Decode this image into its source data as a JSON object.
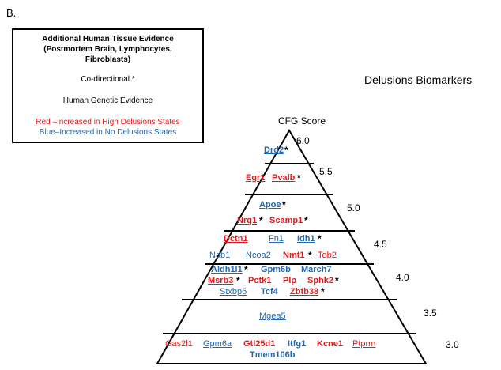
{
  "panel_label": "B.",
  "legend": {
    "title_lines": [
      "Additional Human Tissue Evidence",
      "(Postmortem Brain, Lymphocytes,",
      "Fibroblasts)"
    ],
    "codirectional": "Co-directional *",
    "genetic": "Human Genetic Evidence",
    "red_text": "Red –Increased in High Delusions States",
    "blue_text": "Blue–Increased in No Delusions States",
    "red_color": "#e31a1c",
    "blue_color": "#1f68b2"
  },
  "title": "Delusions Biomarkers",
  "cfg_label": "CFG Score",
  "scores": [
    "6.0",
    "5.5",
    "5.0",
    "4.5",
    "4.0",
    "3.5",
    "3.0"
  ],
  "genes": [
    {
      "name": "Drd2",
      "star": "*"
    },
    {
      "name": "Egr1"
    },
    {
      "name": "Pvalb",
      "star": "*"
    },
    {
      "name": "Apoe",
      "star": "*"
    },
    {
      "name": "Nrg1",
      "star": "*"
    },
    {
      "name": "Scamp1",
      "star": "*"
    },
    {
      "name": "Dctn1"
    },
    {
      "name": "Fn1"
    },
    {
      "name": "Idh1",
      "star": "*"
    },
    {
      "name": "Nab1"
    },
    {
      "name": "Ncoa2"
    },
    {
      "name": "Nmt1",
      "star": "*"
    },
    {
      "name": "Tob2"
    },
    {
      "name": "Aldh1l1",
      "star": "*"
    },
    {
      "name": "Gpm6b"
    },
    {
      "name": "March7"
    },
    {
      "name": "Msrb3",
      "star": "*"
    },
    {
      "name": "Pctk1"
    },
    {
      "name": "Plp"
    },
    {
      "name": "Sphk2",
      "star": "*"
    },
    {
      "name": "Stxbp6"
    },
    {
      "name": "Tcf4"
    },
    {
      "name": "Zbtb38",
      "star": "*"
    },
    {
      "name": "Mgea5"
    },
    {
      "name": "Gas2l1"
    },
    {
      "name": "Gpm6a"
    },
    {
      "name": "Gtl25d1"
    },
    {
      "name": "Itfg1"
    },
    {
      "name": "Kcne1"
    },
    {
      "name": "Ptprm"
    },
    {
      "name": "Tmem106b"
    }
  ]
}
